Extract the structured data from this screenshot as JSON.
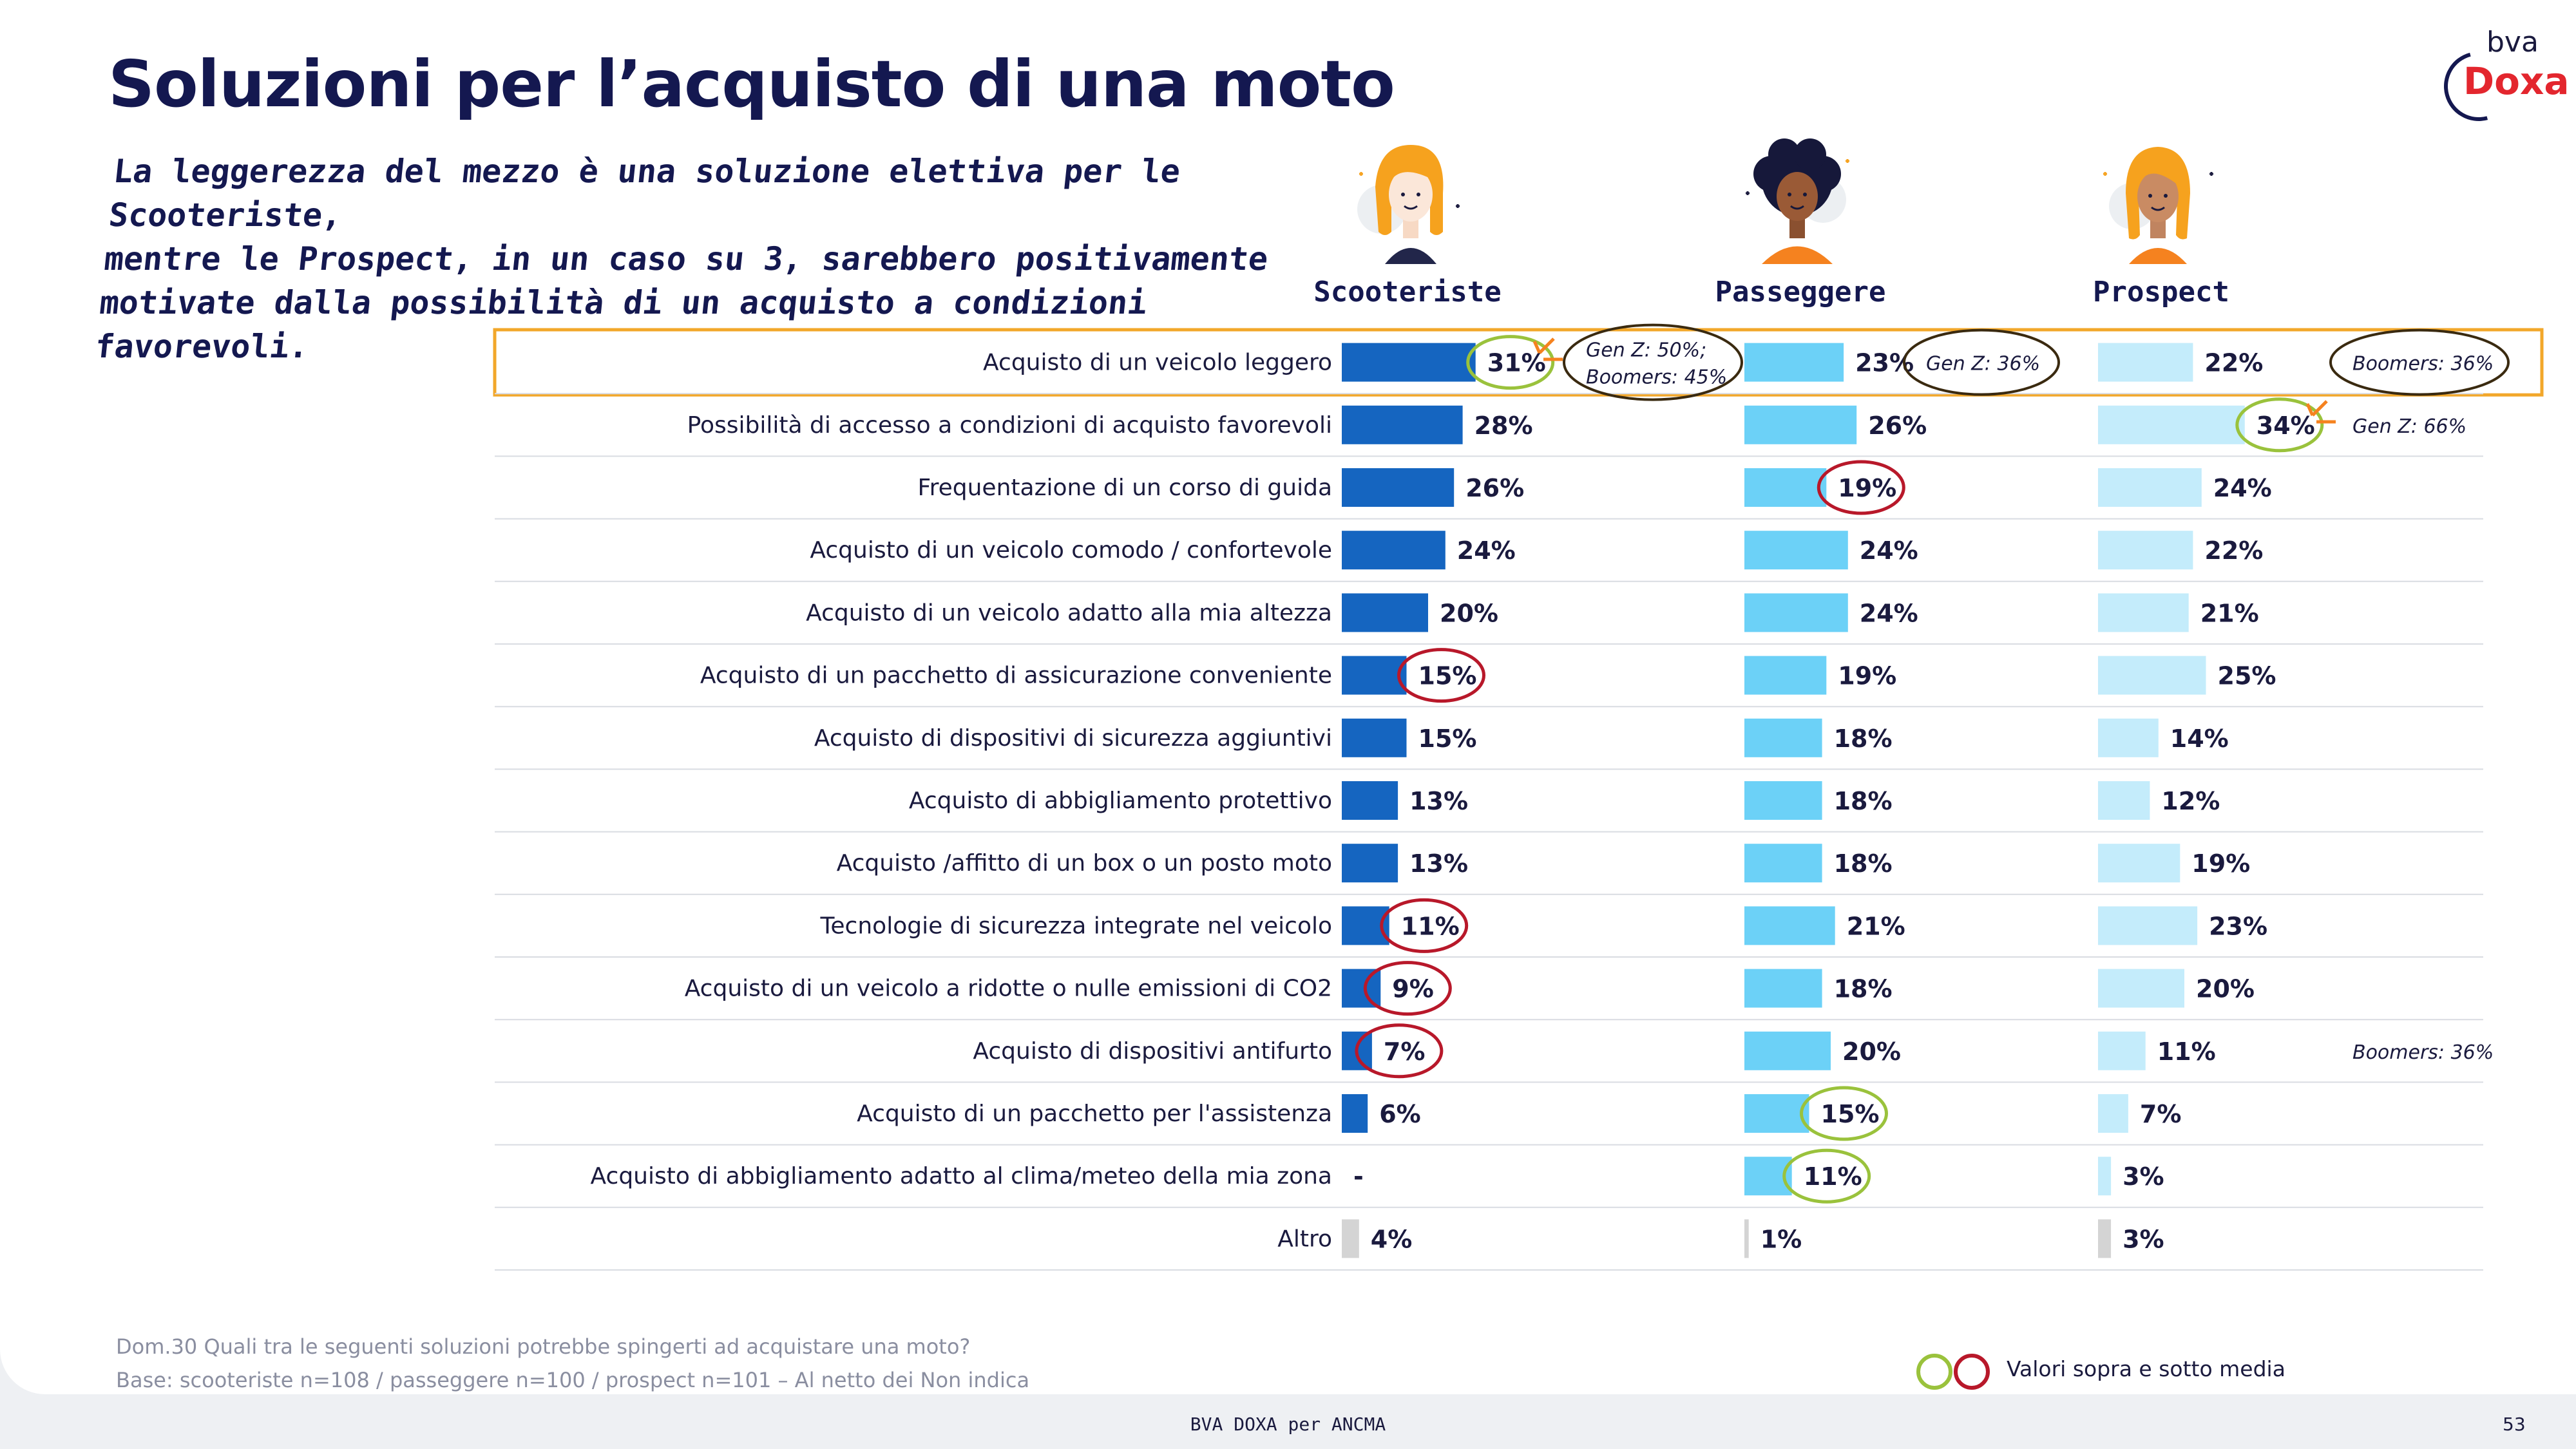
{
  "title": "Soluzioni per l’acquisto di una moto",
  "subtitle_lines": [
    "La leggerezza del mezzo è una soluzione elettiva per le Scooteriste,",
    "mentre le Prospect, in un caso su 3, sarebbero positivamente",
    "motivate dalla possibilità di un acquisto a condizioni favorevoli."
  ],
  "logo": {
    "top": "bva",
    "bottom": "Doxa"
  },
  "chart_data": {
    "type": "bar",
    "orientation": "horizontal",
    "categories": [
      "Acquisto di un veicolo leggero",
      "Possibilità di accesso a condizioni di acquisto favorevoli",
      "Frequentazione di un corso di guida",
      "Acquisto di un veicolo comodo / confortevole",
      "Acquisto di un veicolo adatto alla mia altezza",
      "Acquisto di un pacchetto di assicurazione conveniente",
      "Acquisto di dispositivi di sicurezza aggiuntivi",
      "Acquisto di abbigliamento protettivo",
      "Acquisto /affitto di un box o un posto moto",
      "Tecnologie di sicurezza integrate nel veicolo",
      "Acquisto di un veicolo a ridotte o nulle emissioni di CO2",
      "Acquisto di dispositivi antifurto",
      "Acquisto di un pacchetto per l'assistenza",
      "Acquisto di abbigliamento adatto al clima/meteo della mia zona",
      "Altro"
    ],
    "series": [
      {
        "name": "Scooteriste",
        "color": "#1565c0",
        "values": [
          31,
          28,
          26,
          24,
          20,
          15,
          15,
          13,
          13,
          11,
          9,
          7,
          6,
          null,
          4
        ],
        "labels": [
          "31%",
          "28%",
          "26%",
          "24%",
          "20%",
          "15%",
          "15%",
          "13%",
          "13%",
          "11%",
          "9%",
          "7%",
          "6%",
          "-",
          "4%"
        ],
        "highlight": [
          [
            "above",
            0
          ],
          [
            "below",
            5
          ],
          [
            "below",
            9
          ],
          [
            "below",
            10
          ],
          [
            "below",
            11
          ]
        ]
      },
      {
        "name": "Passeggere",
        "color": "#6cd1f7",
        "values": [
          23,
          26,
          19,
          24,
          24,
          19,
          18,
          18,
          18,
          21,
          18,
          20,
          15,
          11,
          1
        ],
        "labels": [
          "23%",
          "26%",
          "19%",
          "24%",
          "24%",
          "19%",
          "18%",
          "18%",
          "18%",
          "21%",
          "18%",
          "20%",
          "15%",
          "11%",
          "1%"
        ],
        "highlight": [
          [
            "below",
            2
          ],
          [
            "above",
            12
          ],
          [
            "above",
            13
          ]
        ]
      },
      {
        "name": "Prospect",
        "color": "#c4ecfb",
        "values": [
          22,
          34,
          24,
          22,
          21,
          25,
          14,
          12,
          19,
          23,
          20,
          11,
          7,
          3,
          3
        ],
        "labels": [
          "22%",
          "34%",
          "24%",
          "22%",
          "21%",
          "25%",
          "14%",
          "12%",
          "19%",
          "23%",
          "20%",
          "11%",
          "7%",
          "3%",
          "3%"
        ],
        "highlight": [
          [
            "above",
            1
          ]
        ]
      }
    ],
    "other_color": "#d4d4d4",
    "highlight_colors": {
      "above": "#9ac23c",
      "below": "#b8182a"
    },
    "annotations": [
      {
        "row": 0,
        "series": 0,
        "lines": [
          "Gen Z: 50%;",
          "Boomers: 45%"
        ],
        "circled": true
      },
      {
        "row": 0,
        "series": 1,
        "lines": [
          "Gen Z: 36%"
        ],
        "circled": true
      },
      {
        "row": 0,
        "series": 2,
        "lines": [
          "Boomers: 36%"
        ],
        "circled": true
      },
      {
        "row": 1,
        "series": 2,
        "lines": [
          "Gen Z: 66%"
        ],
        "circled": false
      },
      {
        "row": 11,
        "series": 2,
        "lines": [
          "Boomers: 36%"
        ],
        "circled": false
      }
    ],
    "highlighted_row": 0,
    "highlight_row_color": "#f2a72a",
    "annotation_circle_color": "#3a2a10"
  },
  "footnote": {
    "question": "Dom.30 Quali tra le seguenti soluzioni potrebbe spingerti ad acquistare una moto?",
    "base": "Base: scooteriste n=108 / passeggere n=100 / prospect n=101 – Al netto dei Non indica"
  },
  "legend_label": "Valori sopra e sotto media",
  "footer": "BVA DOXA per ANCMA",
  "page_number": "53"
}
